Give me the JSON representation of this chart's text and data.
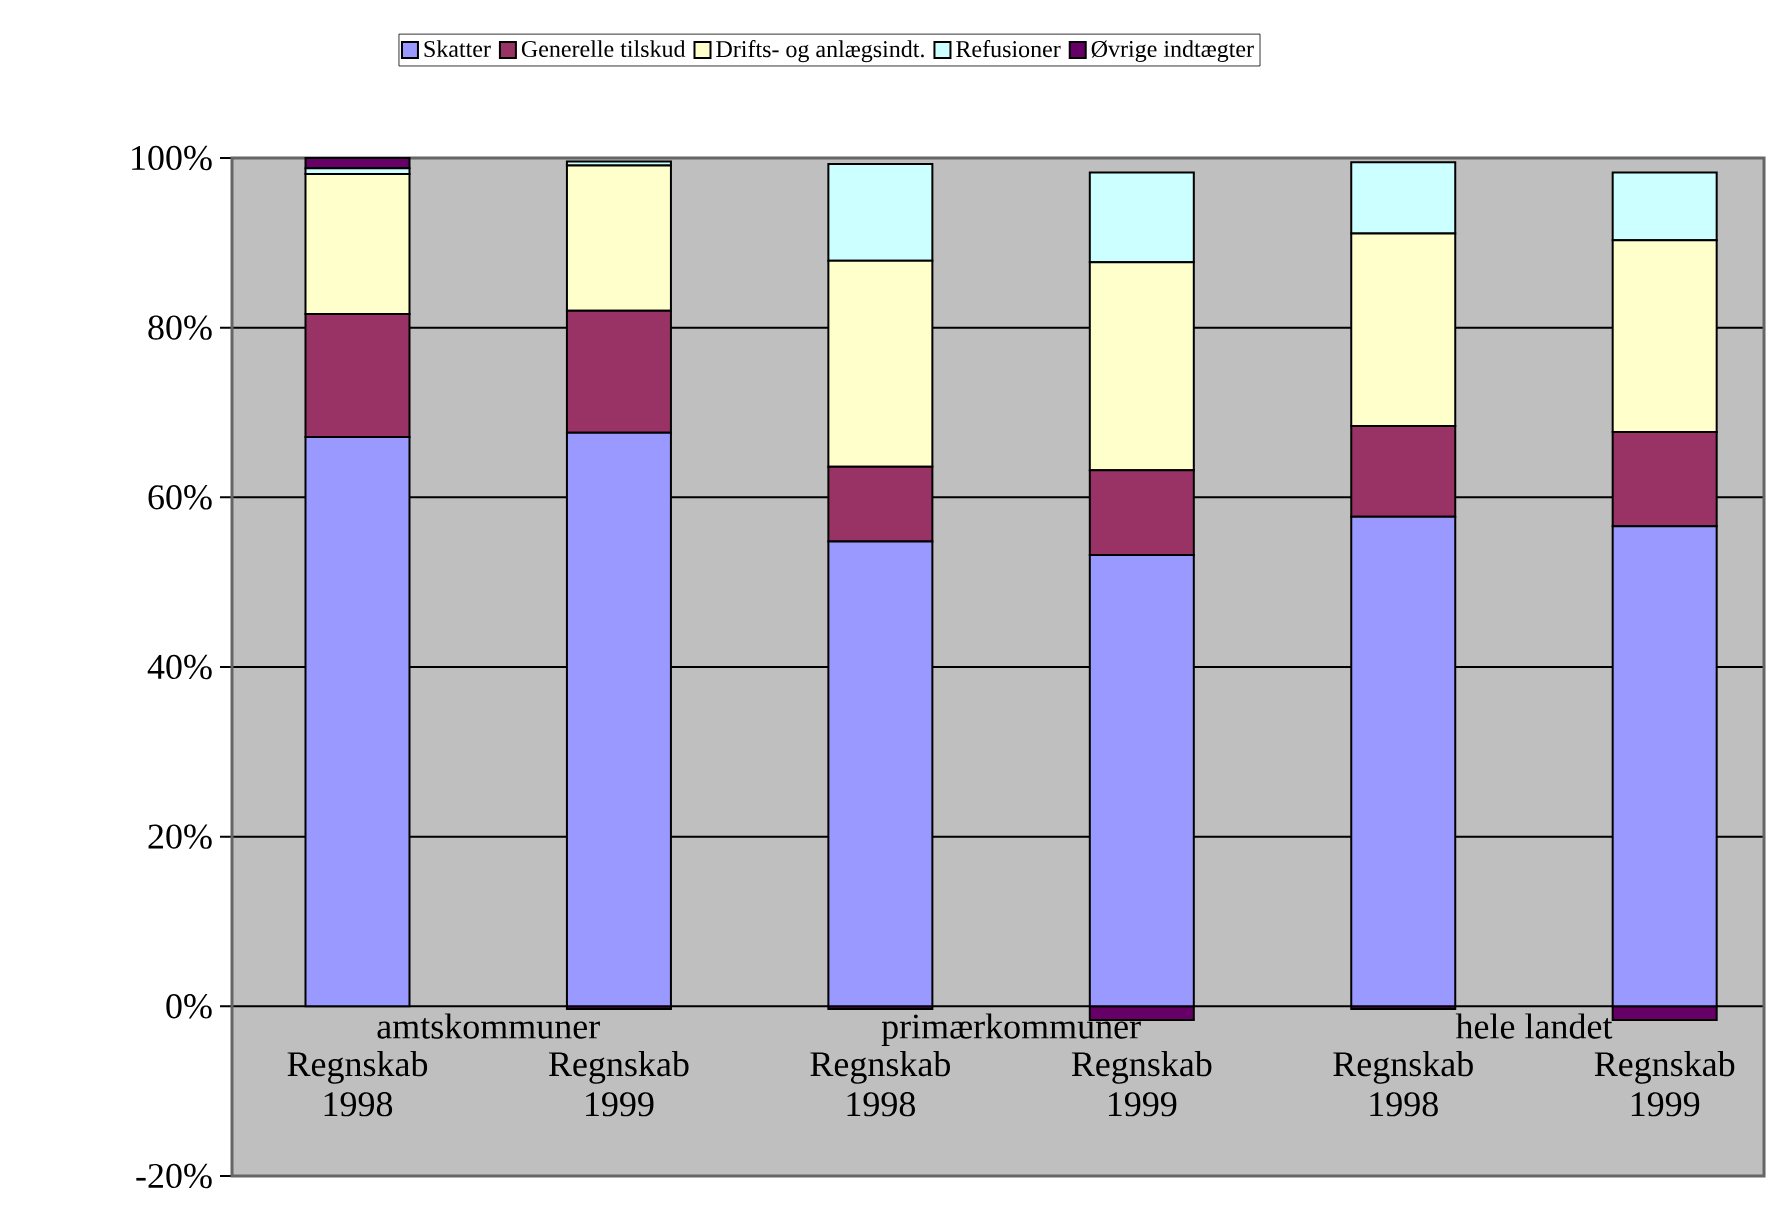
{
  "chart_data": {
    "type": "bar",
    "stacked": true,
    "categories": [
      "Regnskab 1998",
      "Regnskab 1999",
      "Regnskab 1998",
      "Regnskab 1999",
      "Regnskab 1998",
      "Regnskab 1999"
    ],
    "annotations": [
      "amtskommuner",
      "primærkommuner",
      "hele landet"
    ],
    "series": [
      {
        "name": "Skatter",
        "color": "#9999ff",
        "values": [
          67.1,
          67.6,
          54.8,
          53.2,
          57.7,
          56.6
        ]
      },
      {
        "name": "Generelle tilskud",
        "color": "#993366",
        "values": [
          14.5,
          14.4,
          8.8,
          10.0,
          10.7,
          11.1
        ]
      },
      {
        "name": "Drifts- og anlægsindt.",
        "color": "#ffffcc",
        "values": [
          16.5,
          17.1,
          24.3,
          24.5,
          22.7,
          22.6
        ]
      },
      {
        "name": "Refusioner",
        "color": "#ccffff",
        "values": [
          0.7,
          0.5,
          11.4,
          10.6,
          8.4,
          8.0
        ]
      },
      {
        "name": "Øvrige indtægter",
        "color": "#660066",
        "values": [
          1.2,
          -0.3,
          -0.3,
          -1.6,
          -0.3,
          -1.6
        ]
      }
    ],
    "ylim": [
      -20,
      100
    ],
    "yticks": [
      {
        "value": -20,
        "label": "-20%"
      },
      {
        "value": 0,
        "label": "0%"
      },
      {
        "value": 20,
        "label": "20%"
      },
      {
        "value": 40,
        "label": "40%"
      },
      {
        "value": 60,
        "label": "60%"
      },
      {
        "value": 80,
        "label": "80%"
      },
      {
        "value": 100,
        "label": "100%"
      }
    ],
    "grid": "y",
    "legend": "top"
  }
}
